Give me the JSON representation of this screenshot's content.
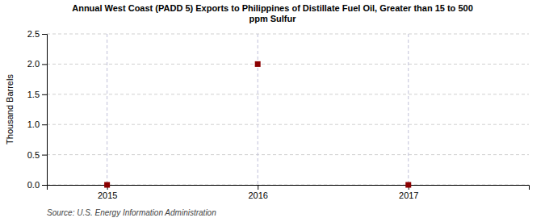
{
  "chart_data": {
    "type": "scatter",
    "title": "Annual West Coast (PADD 5) Exports to Philippines of Distillate Fuel Oil, Greater than 15 to 500\nppm Sulfur",
    "ylabel": "Thousand Barrels",
    "annotations": [
      "Source: U.S. Energy Information Administration"
    ],
    "x": [
      2015,
      2016,
      2017
    ],
    "values": [
      0.0,
      2.0,
      0.0
    ],
    "color": "#8b0000",
    "marker": "square",
    "xlim": [
      2014.6,
      2017.8
    ],
    "ylim": [
      0.0,
      2.5
    ],
    "xticks": [
      2015,
      2016,
      2017
    ],
    "yticks": [
      {
        "value": 0.0,
        "label": "0.0"
      },
      0.5,
      {
        "value": 1.0,
        "label": "1.0"
      },
      1.5,
      {
        "value": 2.0,
        "label": "2.0"
      },
      2.5
    ],
    "grid": true
  }
}
